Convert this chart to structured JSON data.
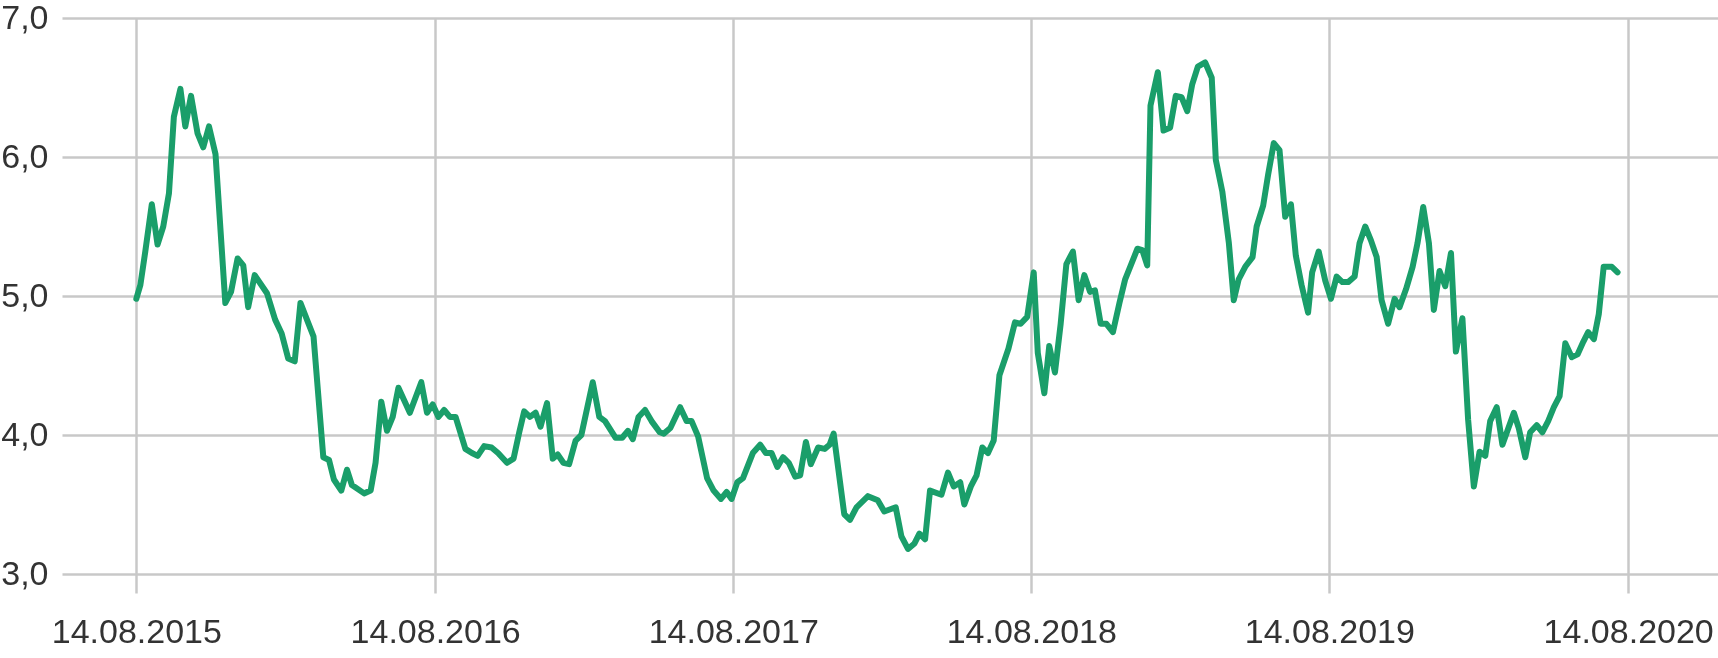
{
  "chart_data": {
    "type": "line",
    "x": [
      "2015-08-14",
      "2015-08-19",
      "2015-08-25",
      "2015-09-02",
      "2015-09-09",
      "2015-09-16",
      "2015-09-23",
      "2015-09-29",
      "2015-10-07",
      "2015-10-13",
      "2015-10-20",
      "2015-10-28",
      "2015-11-04",
      "2015-11-11",
      "2015-11-19",
      "2015-12-01",
      "2015-12-08",
      "2015-12-16",
      "2015-12-23",
      "2015-12-29",
      "2016-01-06",
      "2016-01-21",
      "2016-01-31",
      "2016-02-08",
      "2016-02-16",
      "2016-02-24",
      "2016-03-02",
      "2016-03-12",
      "2016-03-18",
      "2016-03-30",
      "2016-04-06",
      "2016-04-12",
      "2016-04-21",
      "2016-04-28",
      "2016-05-04",
      "2016-05-19",
      "2016-05-27",
      "2016-06-02",
      "2016-06-09",
      "2016-06-16",
      "2016-06-23",
      "2016-06-30",
      "2016-07-14",
      "2016-07-28",
      "2016-08-04",
      "2016-08-11",
      "2016-08-18",
      "2016-08-25",
      "2016-09-01",
      "2016-09-08",
      "2016-09-20",
      "2016-09-28",
      "2016-10-05",
      "2016-10-13",
      "2016-10-22",
      "2016-10-30",
      "2016-11-10",
      "2016-11-18",
      "2016-11-25",
      "2016-12-01",
      "2016-12-08",
      "2016-12-15",
      "2016-12-21",
      "2016-12-29",
      "2017-01-05",
      "2017-01-11",
      "2017-01-18",
      "2017-01-25",
      "2017-02-02",
      "2017-02-09",
      "2017-02-16",
      "2017-02-23",
      "2017-03-03",
      "2017-03-10",
      "2017-03-23",
      "2017-03-31",
      "2017-04-07",
      "2017-04-13",
      "2017-04-20",
      "2017-04-28",
      "2017-05-06",
      "2017-05-16",
      "2017-05-21",
      "2017-05-29",
      "2017-06-10",
      "2017-06-18",
      "2017-06-24",
      "2017-07-02",
      "2017-07-13",
      "2017-07-21",
      "2017-07-30",
      "2017-08-06",
      "2017-08-12",
      "2017-08-19",
      "2017-08-26",
      "2017-09-07",
      "2017-09-16",
      "2017-09-23",
      "2017-09-30",
      "2017-10-07",
      "2017-10-14",
      "2017-10-21",
      "2017-10-29",
      "2017-11-04",
      "2017-11-11",
      "2017-11-17",
      "2017-11-26",
      "2017-12-04",
      "2017-12-10",
      "2017-12-15",
      "2017-12-28",
      "2018-01-04",
      "2018-01-12",
      "2018-01-26",
      "2018-02-07",
      "2018-02-15",
      "2018-03-01",
      "2018-03-08",
      "2018-03-16",
      "2018-03-24",
      "2018-03-30",
      "2018-04-06",
      "2018-04-12",
      "2018-04-26",
      "2018-05-04",
      "2018-05-11",
      "2018-05-19",
      "2018-05-24",
      "2018-06-01",
      "2018-06-08",
      "2018-06-15",
      "2018-06-22",
      "2018-06-29",
      "2018-07-06",
      "2018-07-17",
      "2018-07-25",
      "2018-08-01",
      "2018-08-09",
      "2018-08-17",
      "2018-08-22",
      "2018-08-30",
      "2018-09-05",
      "2018-09-12",
      "2018-09-19",
      "2018-09-26",
      "2018-10-04",
      "2018-10-11",
      "2018-10-18",
      "2018-10-25",
      "2018-10-31",
      "2018-11-07",
      "2018-11-14",
      "2018-11-22",
      "2018-11-30",
      "2018-12-07",
      "2018-12-22",
      "2018-12-28",
      "2019-01-03",
      "2019-01-07",
      "2019-01-16",
      "2019-01-23",
      "2019-01-31",
      "2019-02-07",
      "2019-02-14",
      "2019-02-21",
      "2019-02-27",
      "2019-03-06",
      "2019-03-15",
      "2019-03-23",
      "2019-03-28",
      "2019-04-05",
      "2019-04-13",
      "2019-04-19",
      "2019-04-25",
      "2019-05-03",
      "2019-05-12",
      "2019-05-17",
      "2019-05-25",
      "2019-05-31",
      "2019-06-07",
      "2019-06-14",
      "2019-06-21",
      "2019-06-28",
      "2019-07-04",
      "2019-07-11",
      "2019-07-19",
      "2019-07-24",
      "2019-08-01",
      "2019-08-09",
      "2019-08-16",
      "2019-08-23",
      "2019-08-30",
      "2019-09-06",
      "2019-09-14",
      "2019-09-20",
      "2019-09-27",
      "2019-10-04",
      "2019-10-11",
      "2019-10-17",
      "2019-10-25",
      "2019-11-02",
      "2019-11-08",
      "2019-11-16",
      "2019-11-24",
      "2019-11-30",
      "2019-12-07",
      "2019-12-14",
      "2019-12-20",
      "2019-12-27",
      "2020-01-03",
      "2020-01-10",
      "2020-01-16",
      "2020-01-24",
      "2020-01-31",
      "2020-02-07",
      "2020-02-14",
      "2020-02-21",
      "2020-02-27",
      "2020-03-06",
      "2020-03-13",
      "2020-03-27",
      "2020-04-02",
      "2020-04-10",
      "2020-04-16",
      "2020-04-24",
      "2020-05-01",
      "2020-05-08",
      "2020-05-15",
      "2020-05-22",
      "2020-05-29",
      "2020-06-06",
      "2020-06-13",
      "2020-06-20",
      "2020-06-26",
      "2020-07-03",
      "2020-07-09",
      "2020-07-15",
      "2020-07-25",
      "2020-08-01"
    ],
    "series": [
      {
        "color": "#1a9e6a",
        "values": [
          4.98,
          5.08,
          5.32,
          5.66,
          5.37,
          5.5,
          5.74,
          6.29,
          6.49,
          6.22,
          6.44,
          6.17,
          6.07,
          6.22,
          6.02,
          4.95,
          5.03,
          5.27,
          5.22,
          4.92,
          5.15,
          5.02,
          4.83,
          4.73,
          4.55,
          4.53,
          4.95,
          4.8,
          4.71,
          3.84,
          3.82,
          3.68,
          3.6,
          3.75,
          3.64,
          3.58,
          3.6,
          3.8,
          4.24,
          4.03,
          4.13,
          4.34,
          4.16,
          4.38,
          4.16,
          4.22,
          4.13,
          4.18,
          4.13,
          4.13,
          3.9,
          3.87,
          3.85,
          3.92,
          3.91,
          3.87,
          3.8,
          3.83,
          4.02,
          4.17,
          4.13,
          4.16,
          4.06,
          4.23,
          3.83,
          3.86,
          3.8,
          3.79,
          3.96,
          4.0,
          4.19,
          4.38,
          4.13,
          4.1,
          3.98,
          3.98,
          4.03,
          3.97,
          4.13,
          4.18,
          4.1,
          4.02,
          4.01,
          4.05,
          4.2,
          4.1,
          4.1,
          3.99,
          3.69,
          3.6,
          3.54,
          3.59,
          3.54,
          3.66,
          3.69,
          3.87,
          3.93,
          3.87,
          3.87,
          3.77,
          3.84,
          3.8,
          3.7,
          3.71,
          3.95,
          3.79,
          3.91,
          3.9,
          3.93,
          4.01,
          3.43,
          3.39,
          3.48,
          3.56,
          3.53,
          3.45,
          3.48,
          3.27,
          3.18,
          3.22,
          3.29,
          3.25,
          3.6,
          3.57,
          3.73,
          3.63,
          3.66,
          3.5,
          3.63,
          3.71,
          3.91,
          3.87,
          3.96,
          4.43,
          4.62,
          4.81,
          4.8,
          4.85,
          5.17,
          4.59,
          4.3,
          4.64,
          4.45,
          4.8,
          5.23,
          5.32,
          4.97,
          5.15,
          5.03,
          5.04,
          4.8,
          4.8,
          4.74,
          4.95,
          5.12,
          5.34,
          5.33,
          5.22,
          6.37,
          6.61,
          6.19,
          6.21,
          6.44,
          6.43,
          6.33,
          6.52,
          6.65,
          6.68,
          6.57,
          5.98,
          5.75,
          5.38,
          4.97,
          5.12,
          5.21,
          5.28,
          5.5,
          5.65,
          5.87,
          6.1,
          6.05,
          5.57,
          5.66,
          5.29,
          5.08,
          4.88,
          5.17,
          5.32,
          5.11,
          4.98,
          5.14,
          5.1,
          5.1,
          5.14,
          5.38,
          5.5,
          5.4,
          5.28,
          4.97,
          4.8,
          4.98,
          4.92,
          5.05,
          5.21,
          5.38,
          5.64,
          5.38,
          4.9,
          5.18,
          5.07,
          5.31,
          4.6,
          4.84,
          4.11,
          3.63,
          3.88,
          3.85,
          4.1,
          4.2,
          3.93,
          4.16,
          4.05,
          3.84,
          4.02,
          4.07,
          4.02,
          4.1,
          4.2,
          4.28,
          4.66,
          4.56,
          4.58,
          4.67,
          4.74,
          4.69,
          4.87,
          5.21,
          5.21,
          5.17
        ]
      }
    ],
    "xlim": [
      "2015-05-15",
      "2020-12-02"
    ],
    "xticks": [
      {
        "value": "2015-08-14",
        "label": "14.08.2015"
      },
      {
        "value": "2016-08-14",
        "label": "14.08.2016"
      },
      {
        "value": "2017-08-14",
        "label": "14.08.2017"
      },
      {
        "value": "2018-08-14",
        "label": "14.08.2018"
      },
      {
        "value": "2019-08-14",
        "label": "14.08.2019"
      },
      {
        "value": "2020-08-14",
        "label": "14.08.2020"
      }
    ],
    "ylim": [
      3,
      7
    ],
    "yticks": [
      {
        "value": 3,
        "label": "3,0"
      },
      {
        "value": 4,
        "label": "4,0"
      },
      {
        "value": 5,
        "label": "5,0"
      },
      {
        "value": 6,
        "label": "6,0"
      },
      {
        "value": 7,
        "label": "7,0"
      }
    ],
    "grid": true
  }
}
